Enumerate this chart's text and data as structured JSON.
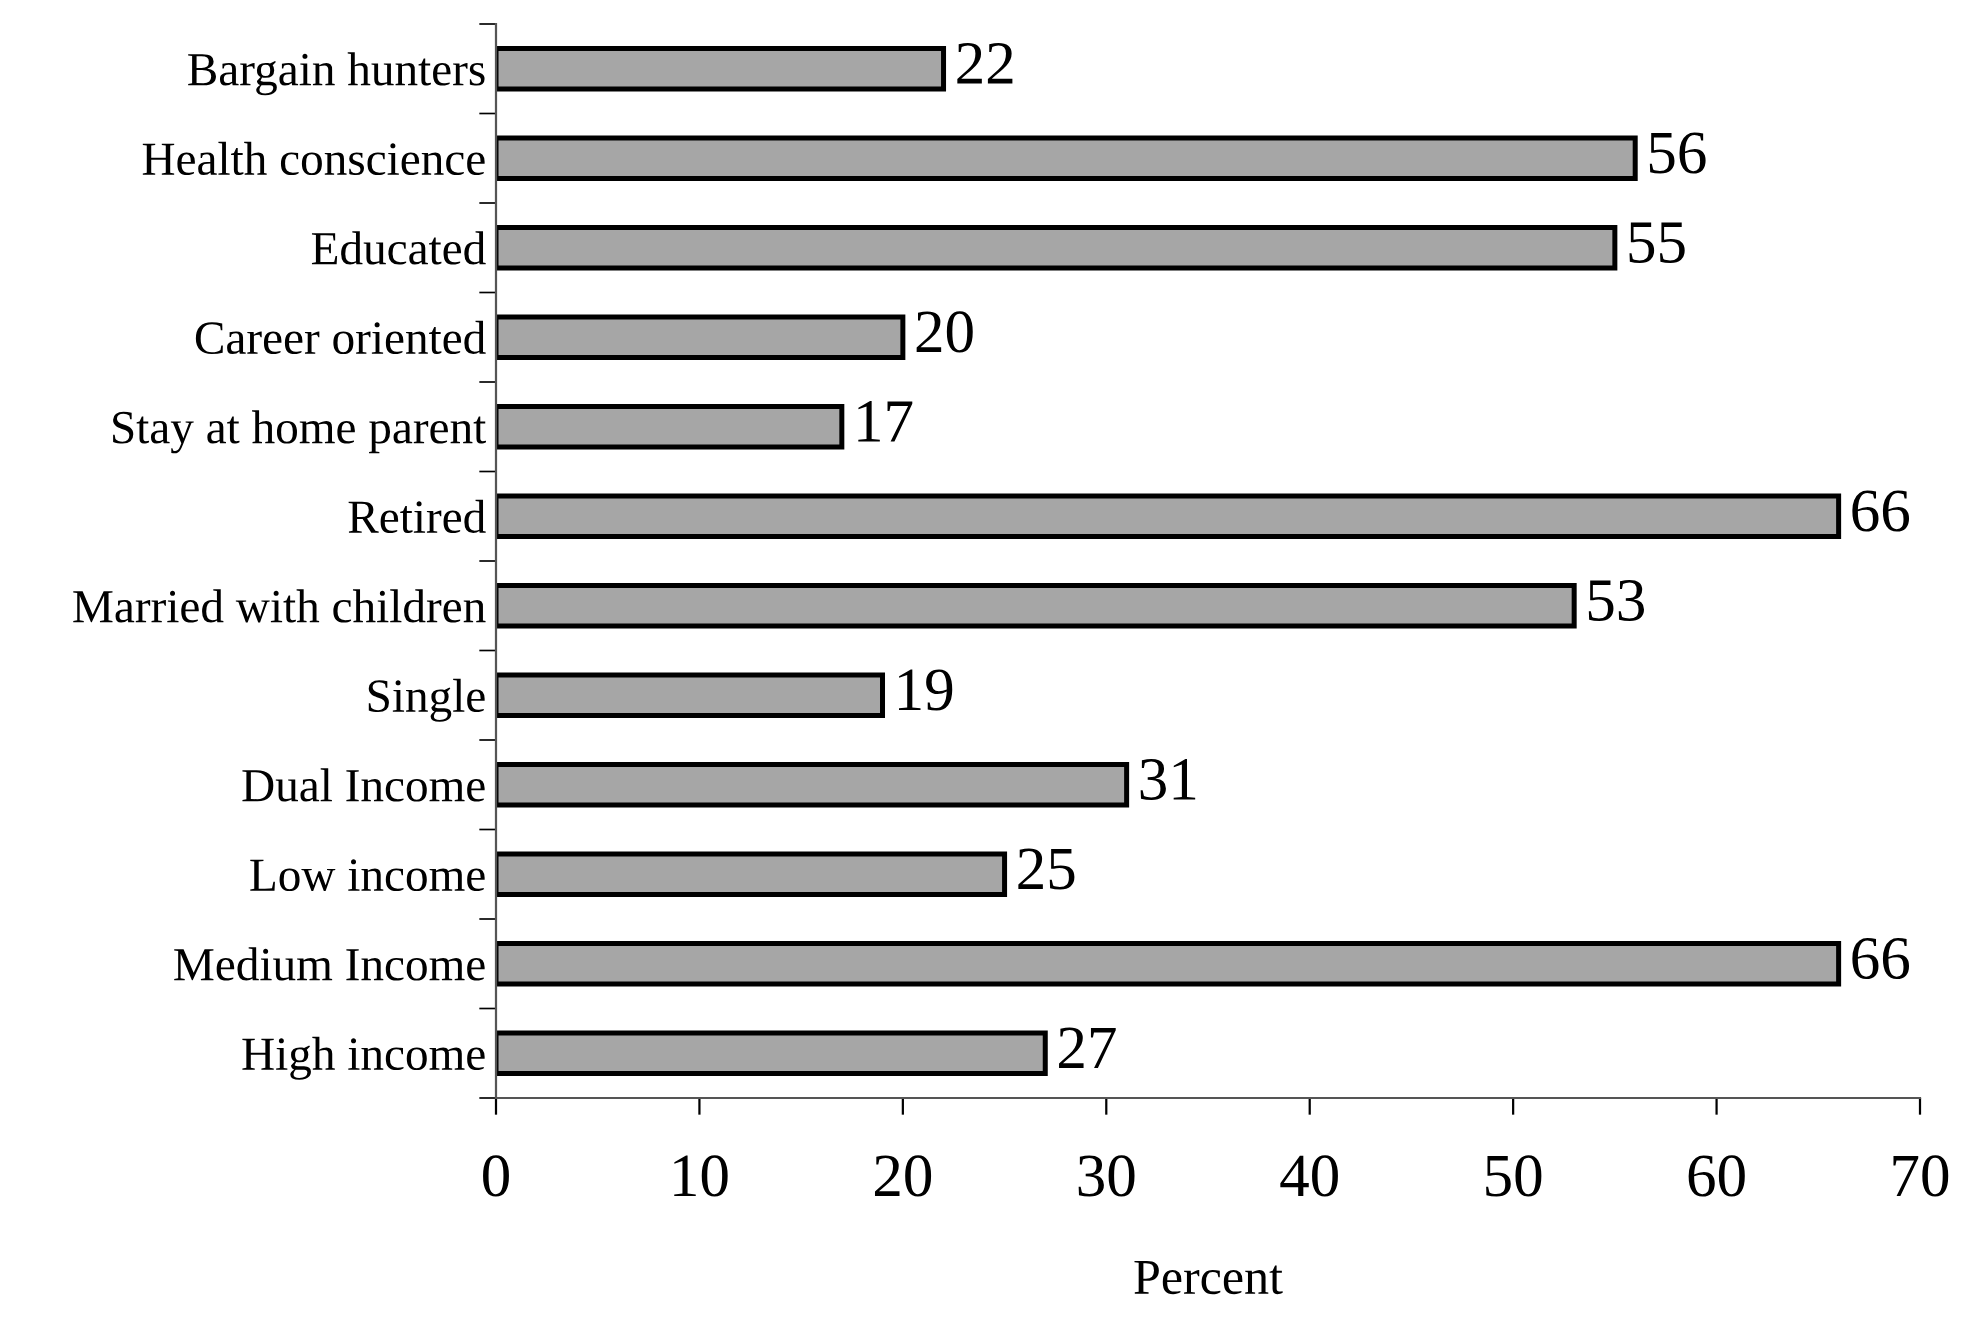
{
  "chart_data": {
    "type": "bar",
    "orientation": "horizontal",
    "xlabel": "Percent",
    "categories": [
      "Bargain hunters",
      "Health conscience",
      "Educated",
      "Career oriented",
      "Stay at home parent",
      "Retired",
      "Married with children",
      "Single",
      "Dual Income",
      "Low income",
      "Medium Income",
      "High income"
    ],
    "values": [
      22,
      56,
      55,
      20,
      17,
      66,
      53,
      19,
      31,
      25,
      66,
      27
    ],
    "color": "#a6a6a6",
    "data_labels": true,
    "xlim": [
      0,
      70
    ],
    "xticks": [
      0,
      10,
      20,
      30,
      40,
      50,
      60,
      70
    ],
    "grid": false
  }
}
